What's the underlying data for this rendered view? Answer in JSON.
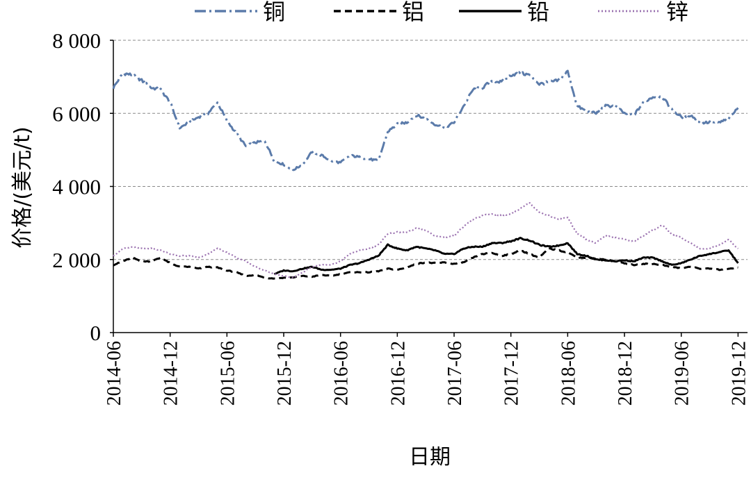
{
  "chart_data": {
    "type": "line",
    "xlabel": "日期",
    "ylabel": "价格/(美元/t)",
    "ylim": [
      0,
      8000
    ],
    "xlim": [
      "2014-06",
      "2020-01"
    ],
    "x_tick_labels": [
      "2014-06",
      "2014-12",
      "2015-06",
      "2015-12",
      "2016-06",
      "2016-12",
      "2017-06",
      "2017-12",
      "2018-06",
      "2018-12",
      "2019-06",
      "2019-12"
    ],
    "y_ticks": [
      0,
      2000,
      4000,
      6000,
      8000
    ],
    "y_tick_labels": [
      "0",
      "2 000",
      "4 000",
      "6 000",
      "8 000"
    ],
    "grid": "horizontal",
    "legend_position": "top",
    "series": [
      {
        "name": "铜",
        "color": "#5B7BAA",
        "style": "dash-dot",
        "points": [
          [
            "2014-06",
            6700
          ],
          [
            "2014-07",
            7100
          ],
          [
            "2014-08",
            7050
          ],
          [
            "2014-09",
            6900
          ],
          [
            "2014-10",
            6700
          ],
          [
            "2014-11",
            6650
          ],
          [
            "2014-12",
            6300
          ],
          [
            "2015-01",
            5600
          ],
          [
            "2015-02",
            5750
          ],
          [
            "2015-03",
            5900
          ],
          [
            "2015-04",
            6000
          ],
          [
            "2015-05",
            6300
          ],
          [
            "2015-06",
            5800
          ],
          [
            "2015-07",
            5450
          ],
          [
            "2015-08",
            5100
          ],
          [
            "2015-09",
            5200
          ],
          [
            "2015-10",
            5250
          ],
          [
            "2015-11",
            4700
          ],
          [
            "2015-12",
            4600
          ],
          [
            "2016-01",
            4450
          ],
          [
            "2016-02",
            4600
          ],
          [
            "2016-03",
            4950
          ],
          [
            "2016-04",
            4850
          ],
          [
            "2016-05",
            4700
          ],
          [
            "2016-06",
            4650
          ],
          [
            "2016-07",
            4850
          ],
          [
            "2016-08",
            4800
          ],
          [
            "2016-09",
            4750
          ],
          [
            "2016-10",
            4700
          ],
          [
            "2016-11",
            5500
          ],
          [
            "2016-12",
            5700
          ],
          [
            "2017-01",
            5750
          ],
          [
            "2017-02",
            5950
          ],
          [
            "2017-03",
            5850
          ],
          [
            "2017-04",
            5700
          ],
          [
            "2017-05",
            5600
          ],
          [
            "2017-06",
            5750
          ],
          [
            "2017-07",
            6200
          ],
          [
            "2017-08",
            6650
          ],
          [
            "2017-09",
            6700
          ],
          [
            "2017-10",
            6900
          ],
          [
            "2017-11",
            6850
          ],
          [
            "2017-12",
            7050
          ],
          [
            "2018-01",
            7100
          ],
          [
            "2018-02",
            7050
          ],
          [
            "2018-03",
            6800
          ],
          [
            "2018-04",
            6850
          ],
          [
            "2018-05",
            6900
          ],
          [
            "2018-06",
            7150
          ],
          [
            "2018-07",
            6200
          ],
          [
            "2018-08",
            6050
          ],
          [
            "2018-09",
            6000
          ],
          [
            "2018-10",
            6200
          ],
          [
            "2018-11",
            6200
          ],
          [
            "2018-12",
            6000
          ],
          [
            "2019-01",
            5950
          ],
          [
            "2019-02",
            6300
          ],
          [
            "2019-03",
            6450
          ],
          [
            "2019-04",
            6450
          ],
          [
            "2019-05",
            6100
          ],
          [
            "2019-06",
            5900
          ],
          [
            "2019-07",
            5950
          ],
          [
            "2019-08",
            5750
          ],
          [
            "2019-09",
            5750
          ],
          [
            "2019-10",
            5750
          ],
          [
            "2019-11",
            5850
          ],
          [
            "2019-12",
            6150
          ]
        ]
      },
      {
        "name": "铝",
        "color": "#000000",
        "style": "dashed",
        "points": [
          [
            "2014-06",
            1850
          ],
          [
            "2014-07",
            1950
          ],
          [
            "2014-08",
            2050
          ],
          [
            "2014-09",
            1950
          ],
          [
            "2014-10",
            1950
          ],
          [
            "2014-11",
            2050
          ],
          [
            "2014-12",
            1900
          ],
          [
            "2015-01",
            1800
          ],
          [
            "2015-02",
            1800
          ],
          [
            "2015-03",
            1750
          ],
          [
            "2015-04",
            1800
          ],
          [
            "2015-05",
            1780
          ],
          [
            "2015-06",
            1700
          ],
          [
            "2015-07",
            1650
          ],
          [
            "2015-08",
            1550
          ],
          [
            "2015-09",
            1580
          ],
          [
            "2015-10",
            1500
          ],
          [
            "2015-11",
            1480
          ],
          [
            "2015-12",
            1500
          ],
          [
            "2016-01",
            1510
          ],
          [
            "2016-02",
            1550
          ],
          [
            "2016-03",
            1530
          ],
          [
            "2016-04",
            1580
          ],
          [
            "2016-05",
            1550
          ],
          [
            "2016-06",
            1600
          ],
          [
            "2016-07",
            1650
          ],
          [
            "2016-08",
            1650
          ],
          [
            "2016-09",
            1650
          ],
          [
            "2016-10",
            1680
          ],
          [
            "2016-11",
            1750
          ],
          [
            "2016-12",
            1720
          ],
          [
            "2017-01",
            1780
          ],
          [
            "2017-02",
            1880
          ],
          [
            "2017-03",
            1920
          ],
          [
            "2017-04",
            1900
          ],
          [
            "2017-05",
            1920
          ],
          [
            "2017-06",
            1880
          ],
          [
            "2017-07",
            1920
          ],
          [
            "2017-08",
            2050
          ],
          [
            "2017-09",
            2150
          ],
          [
            "2017-10",
            2180
          ],
          [
            "2017-11",
            2100
          ],
          [
            "2017-12",
            2150
          ],
          [
            "2018-01",
            2250
          ],
          [
            "2018-02",
            2150
          ],
          [
            "2018-03",
            2050
          ],
          [
            "2018-04",
            2300
          ],
          [
            "2018-05",
            2250
          ],
          [
            "2018-06",
            2200
          ],
          [
            "2018-07",
            2050
          ],
          [
            "2018-08",
            2050
          ],
          [
            "2018-09",
            2020
          ],
          [
            "2018-10",
            2000
          ],
          [
            "2018-11",
            1950
          ],
          [
            "2018-12",
            1900
          ],
          [
            "2019-01",
            1850
          ],
          [
            "2019-02",
            1880
          ],
          [
            "2019-03",
            1880
          ],
          [
            "2019-04",
            1850
          ],
          [
            "2019-05",
            1800
          ],
          [
            "2019-06",
            1760
          ],
          [
            "2019-07",
            1800
          ],
          [
            "2019-08",
            1750
          ],
          [
            "2019-09",
            1750
          ],
          [
            "2019-10",
            1720
          ],
          [
            "2019-11",
            1750
          ],
          [
            "2019-12",
            1780
          ]
        ]
      },
      {
        "name": "铅",
        "color": "#000000",
        "style": "solid",
        "points": [
          [
            "2015-11",
            1600
          ],
          [
            "2015-12",
            1700
          ],
          [
            "2016-01",
            1680
          ],
          [
            "2016-02",
            1750
          ],
          [
            "2016-03",
            1800
          ],
          [
            "2016-04",
            1720
          ],
          [
            "2016-05",
            1720
          ],
          [
            "2016-06",
            1750
          ],
          [
            "2016-07",
            1850
          ],
          [
            "2016-08",
            1900
          ],
          [
            "2016-09",
            2000
          ],
          [
            "2016-10",
            2100
          ],
          [
            "2016-11",
            2400
          ],
          [
            "2016-12",
            2300
          ],
          [
            "2017-01",
            2250
          ],
          [
            "2017-02",
            2350
          ],
          [
            "2017-03",
            2300
          ],
          [
            "2017-04",
            2250
          ],
          [
            "2017-05",
            2150
          ],
          [
            "2017-06",
            2150
          ],
          [
            "2017-07",
            2300
          ],
          [
            "2017-08",
            2350
          ],
          [
            "2017-09",
            2350
          ],
          [
            "2017-10",
            2450
          ],
          [
            "2017-11",
            2450
          ],
          [
            "2017-12",
            2500
          ],
          [
            "2018-01",
            2580
          ],
          [
            "2018-02",
            2520
          ],
          [
            "2018-03",
            2400
          ],
          [
            "2018-04",
            2350
          ],
          [
            "2018-05",
            2380
          ],
          [
            "2018-06",
            2450
          ],
          [
            "2018-07",
            2150
          ],
          [
            "2018-08",
            2100
          ],
          [
            "2018-09",
            2000
          ],
          [
            "2018-10",
            1980
          ],
          [
            "2018-11",
            1950
          ],
          [
            "2018-12",
            1980
          ],
          [
            "2019-01",
            1950
          ],
          [
            "2019-02",
            2050
          ],
          [
            "2019-03",
            2050
          ],
          [
            "2019-04",
            1950
          ],
          [
            "2019-05",
            1850
          ],
          [
            "2019-06",
            1900
          ],
          [
            "2019-07",
            2000
          ],
          [
            "2019-08",
            2100
          ],
          [
            "2019-09",
            2150
          ],
          [
            "2019-10",
            2200
          ],
          [
            "2019-11",
            2250
          ],
          [
            "2019-12",
            1900
          ]
        ]
      },
      {
        "name": "锌",
        "color": "#9B72B0",
        "style": "dotted",
        "points": [
          [
            "2014-06",
            2100
          ],
          [
            "2014-07",
            2300
          ],
          [
            "2014-08",
            2350
          ],
          [
            "2014-09",
            2300
          ],
          [
            "2014-10",
            2300
          ],
          [
            "2014-11",
            2250
          ],
          [
            "2014-12",
            2150
          ],
          [
            "2015-01",
            2100
          ],
          [
            "2015-02",
            2100
          ],
          [
            "2015-03",
            2050
          ],
          [
            "2015-04",
            2150
          ],
          [
            "2015-05",
            2300
          ],
          [
            "2015-06",
            2200
          ],
          [
            "2015-07",
            2050
          ],
          [
            "2015-08",
            1950
          ],
          [
            "2015-09",
            1800
          ],
          [
            "2015-10",
            1700
          ],
          [
            "2015-11",
            1600
          ],
          [
            "2015-12",
            1550
          ],
          [
            "2016-01",
            1500
          ],
          [
            "2016-02",
            1650
          ],
          [
            "2016-03",
            1800
          ],
          [
            "2016-04",
            1850
          ],
          [
            "2016-05",
            1850
          ],
          [
            "2016-06",
            1950
          ],
          [
            "2016-07",
            2150
          ],
          [
            "2016-08",
            2250
          ],
          [
            "2016-09",
            2300
          ],
          [
            "2016-10",
            2400
          ],
          [
            "2016-11",
            2700
          ],
          [
            "2016-12",
            2750
          ],
          [
            "2017-01",
            2750
          ],
          [
            "2017-02",
            2850
          ],
          [
            "2017-03",
            2800
          ],
          [
            "2017-04",
            2650
          ],
          [
            "2017-05",
            2600
          ],
          [
            "2017-06",
            2650
          ],
          [
            "2017-07",
            2900
          ],
          [
            "2017-08",
            3100
          ],
          [
            "2017-09",
            3200
          ],
          [
            "2017-10",
            3250
          ],
          [
            "2017-11",
            3200
          ],
          [
            "2017-12",
            3250
          ],
          [
            "2018-01",
            3400
          ],
          [
            "2018-02",
            3550
          ],
          [
            "2018-03",
            3300
          ],
          [
            "2018-04",
            3200
          ],
          [
            "2018-05",
            3100
          ],
          [
            "2018-06",
            3150
          ],
          [
            "2018-07",
            2700
          ],
          [
            "2018-08",
            2550
          ],
          [
            "2018-09",
            2450
          ],
          [
            "2018-10",
            2650
          ],
          [
            "2018-11",
            2600
          ],
          [
            "2018-12",
            2550
          ],
          [
            "2019-01",
            2500
          ],
          [
            "2019-02",
            2650
          ],
          [
            "2019-03",
            2800
          ],
          [
            "2019-04",
            2950
          ],
          [
            "2019-05",
            2700
          ],
          [
            "2019-06",
            2600
          ],
          [
            "2019-07",
            2450
          ],
          [
            "2019-08",
            2300
          ],
          [
            "2019-09",
            2300
          ],
          [
            "2019-10",
            2400
          ],
          [
            "2019-11",
            2550
          ],
          [
            "2019-12",
            2300
          ]
        ]
      }
    ]
  }
}
